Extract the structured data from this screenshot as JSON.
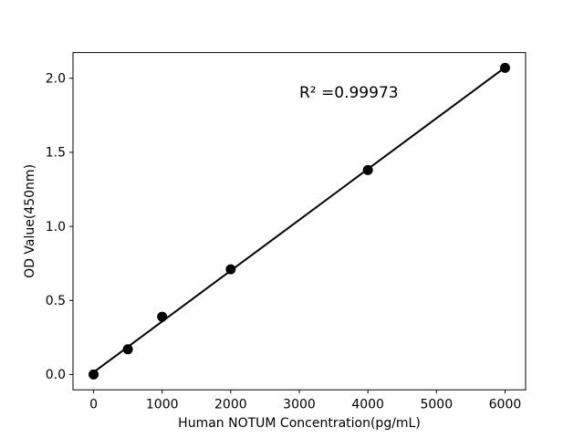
{
  "figure": {
    "background_color": "#ffffff",
    "xlabel": "Human NOTUM Concentration(pg/mL)",
    "ylabel": "OD Value(450nm)",
    "annotation_text": "R² =0.99973"
  },
  "chart_data": {
    "type": "scatter",
    "title": "",
    "xlabel": "Human NOTUM Concentration(pg/mL)",
    "ylabel": "OD Value(450nm)",
    "x": [
      0,
      500,
      1000,
      2000,
      4000,
      6000
    ],
    "y": [
      0.0,
      0.17,
      0.39,
      0.71,
      1.38,
      2.07
    ],
    "fit_line": {
      "x": [
        0,
        6000
      ],
      "y": [
        0.015,
        2.073
      ],
      "slope": 0.000343,
      "intercept": 0.015
    },
    "annotation": {
      "text": "R² =0.99973",
      "x": 3000,
      "y": 1.87,
      "r_squared": 0.99973
    },
    "xlim": [
      -300,
      6300
    ],
    "ylim": [
      -0.1035,
      2.1735
    ],
    "xticks": [
      0,
      1000,
      2000,
      3000,
      4000,
      5000,
      6000
    ],
    "yticks": [
      "0.0",
      "0.5",
      "1.0",
      "1.5",
      "2.0"
    ],
    "ytick_values": [
      0.0,
      0.5,
      1.0,
      1.5,
      2.0
    ],
    "grid": false,
    "legend": "none",
    "marker_color": "#000000",
    "line_color": "#000000",
    "spine_color": "#000000",
    "marker_radius": 5.5,
    "line_width": 2
  }
}
